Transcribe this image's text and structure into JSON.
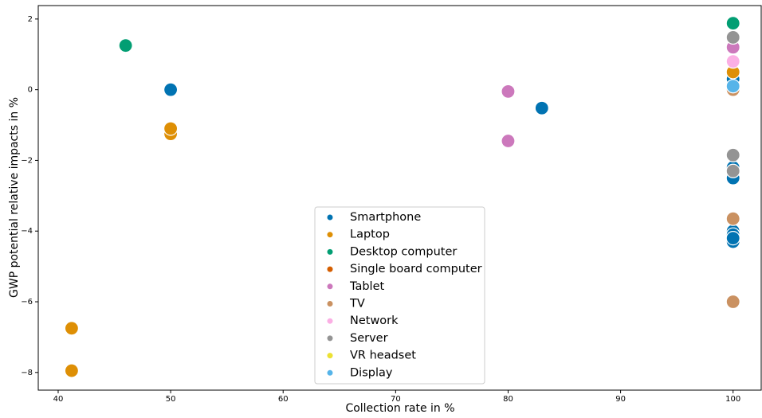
{
  "chart_data": {
    "type": "scatter",
    "x_label": "Collection rate in %",
    "y_label": "GWP potential relative impacts in %",
    "xlim": [
      38.23,
      102.5
    ],
    "ylim": [
      -8.5,
      2.38
    ],
    "xticks": [
      40,
      50,
      60,
      70,
      80,
      90,
      100
    ],
    "yticks": [
      {
        "value": -8,
        "label": "−8"
      },
      {
        "value": -6,
        "label": "−6"
      },
      {
        "value": -4,
        "label": "−4"
      },
      {
        "value": -2,
        "label": "−2"
      },
      0,
      2
    ],
    "legend": "lower center",
    "series": [
      {
        "name": "Smartphone",
        "color": "#0173b2",
        "x": [
          50,
          83,
          100,
          100,
          100,
          100,
          100,
          100,
          100
        ],
        "values": [
          0,
          -0.52,
          -2.2,
          -2.5,
          -4.0,
          -4.1,
          -4.3,
          -4.2,
          0.3
        ]
      },
      {
        "name": "Laptop",
        "color": "#de8f05",
        "x": [
          41.2,
          41.2,
          50,
          50,
          100
        ],
        "values": [
          -6.75,
          -7.95,
          -1.25,
          -1.1,
          0.5
        ]
      },
      {
        "name": "Desktop computer",
        "color": "#029e73",
        "x": [
          46,
          100
        ],
        "values": [
          1.25,
          1.88
        ]
      },
      {
        "name": "Single board computer",
        "color": "#d55e00",
        "x": [],
        "values": []
      },
      {
        "name": "Tablet",
        "color": "#cc78bc",
        "x": [
          80,
          80,
          100
        ],
        "values": [
          -0.05,
          -1.45,
          1.2
        ]
      },
      {
        "name": "TV",
        "color": "#ca9161",
        "x": [
          100,
          100,
          100
        ],
        "values": [
          0.0,
          -3.65,
          -6.0
        ]
      },
      {
        "name": "Network",
        "color": "#fbafe4",
        "x": [
          100
        ],
        "values": [
          0.8
        ]
      },
      {
        "name": "Server",
        "color": "#949494",
        "x": [
          100,
          100,
          100
        ],
        "values": [
          1.48,
          -1.85,
          -2.3
        ]
      },
      {
        "name": "VR headset",
        "color": "#ece133",
        "x": [],
        "values": []
      },
      {
        "name": "Display",
        "color": "#56b4e9",
        "x": [
          100
        ],
        "values": [
          0.1
        ]
      }
    ]
  }
}
